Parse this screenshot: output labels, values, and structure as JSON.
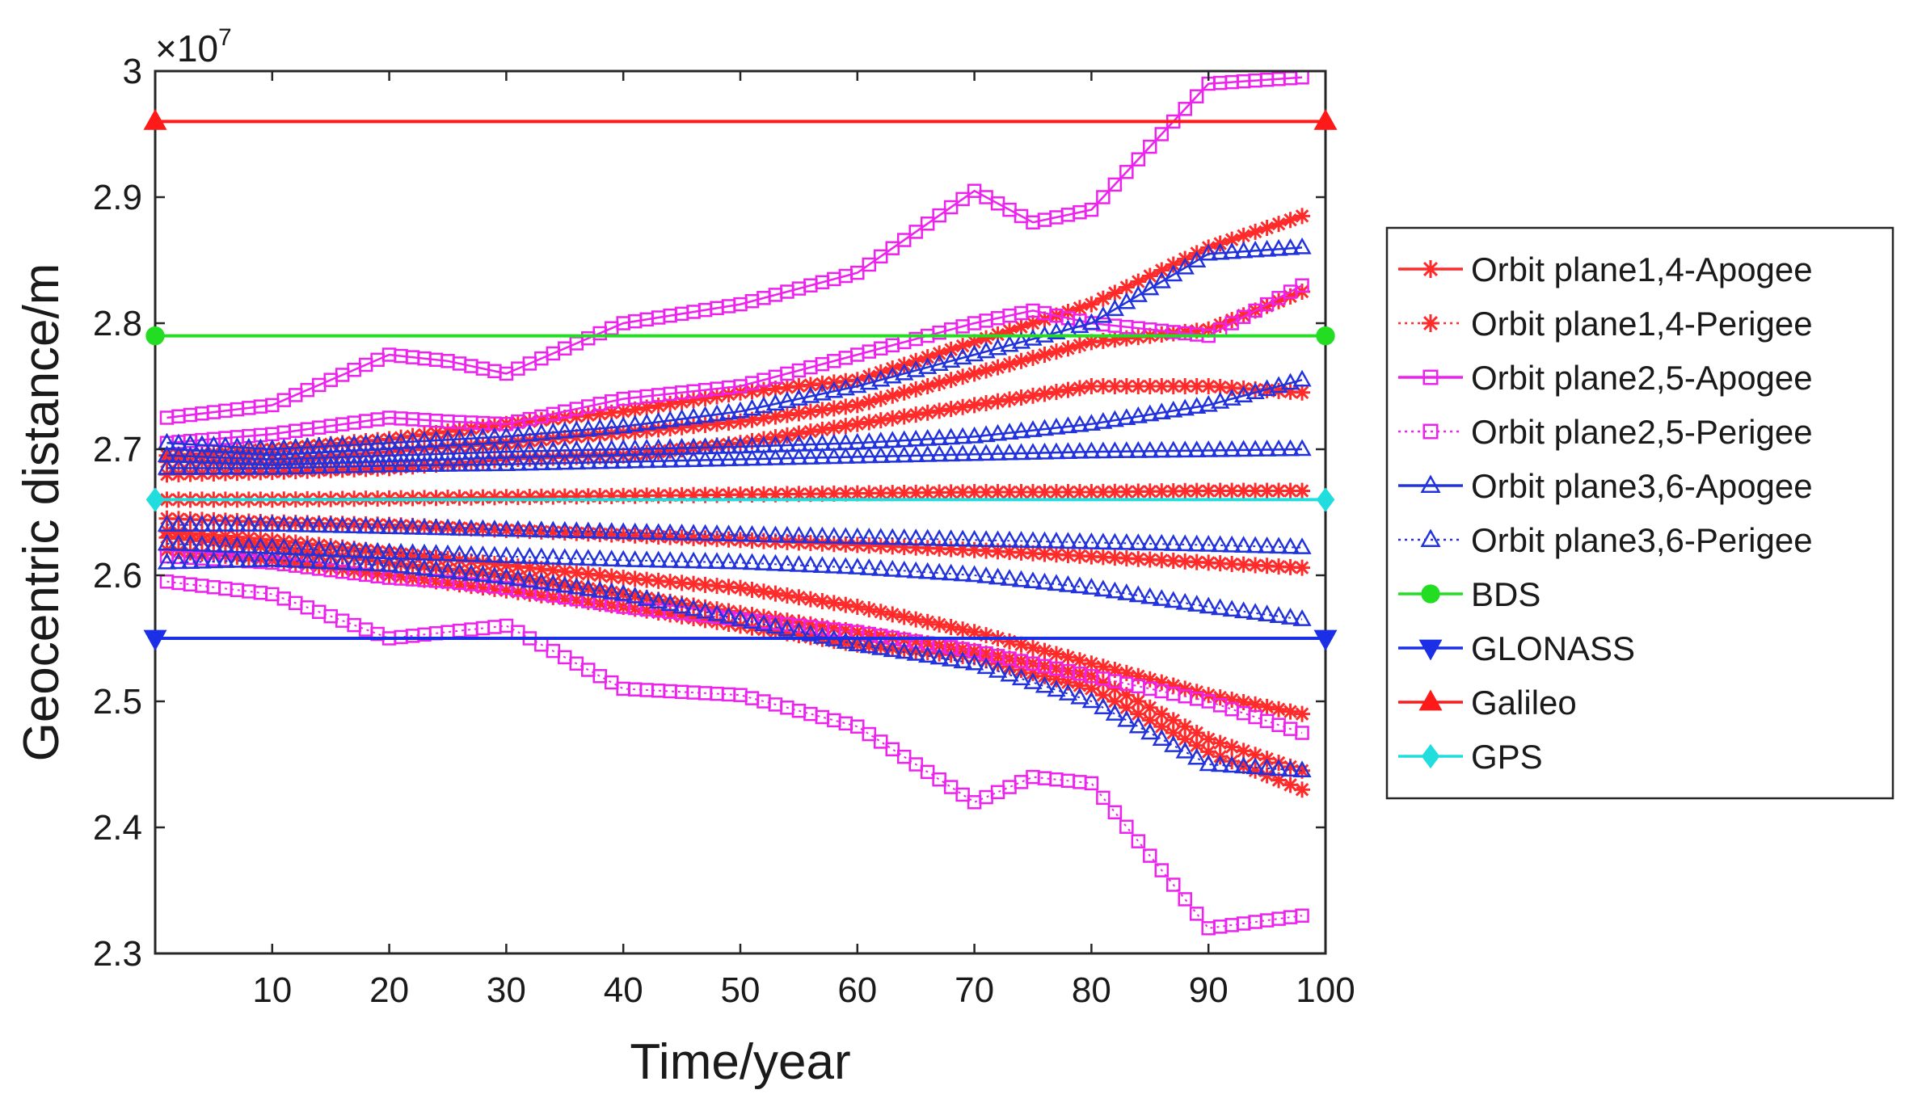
{
  "chart_data": {
    "type": "line",
    "title": "",
    "xlabel": "Time/year",
    "ylabel": "Geocentric distance/m",
    "y_exponent_label": "×10",
    "y_exponent": "7",
    "xlim": [
      0,
      100
    ],
    "ylim": [
      2.3,
      3.0
    ],
    "xticks": [
      "10",
      "20",
      "30",
      "40",
      "50",
      "60",
      "70",
      "80",
      "90",
      "100"
    ],
    "yticks": [
      "2.3",
      "2.4",
      "2.5",
      "2.6",
      "2.7",
      "2.8",
      "2.9",
      "3"
    ],
    "legend_position": "right",
    "colors": {
      "plane14": "#ff2a2a",
      "plane25": "#ee22ee",
      "plane36": "#2233dd",
      "bds": "#22dd22",
      "glonass": "#1a2fe6",
      "galileo": "#ff1a1a",
      "gps": "#22dddd"
    },
    "series": [
      {
        "name": "Orbit plane1,4-Apogee",
        "group": "plane14",
        "marker": "star",
        "dash": "solid",
        "x": [
          1,
          10,
          20,
          30,
          40,
          50,
          60,
          70,
          80,
          90,
          98
        ],
        "lines": [
          [
            2.695,
            2.7,
            2.708,
            2.72,
            2.73,
            2.745,
            2.755,
            2.785,
            2.815,
            2.86,
            2.885
          ],
          [
            2.69,
            2.692,
            2.698,
            2.705,
            2.713,
            2.722,
            2.735,
            2.76,
            2.785,
            2.795,
            2.825
          ],
          [
            2.68,
            2.682,
            2.685,
            2.692,
            2.695,
            2.705,
            2.72,
            2.735,
            2.75,
            2.75,
            2.745
          ],
          [
            2.66,
            2.66,
            2.661,
            2.662,
            2.663,
            2.664,
            2.665,
            2.666,
            2.666,
            2.667,
            2.667
          ]
        ]
      },
      {
        "name": "Orbit plane1,4-Perigee",
        "group": "plane14",
        "marker": "star",
        "dash": "dotted",
        "x": [
          1,
          10,
          20,
          30,
          40,
          50,
          60,
          70,
          80,
          90,
          98
        ],
        "lines": [
          [
            2.635,
            2.628,
            2.618,
            2.608,
            2.598,
            2.59,
            2.575,
            2.555,
            2.53,
            2.505,
            2.49
          ],
          [
            2.63,
            2.622,
            2.61,
            2.6,
            2.585,
            2.57,
            2.555,
            2.54,
            2.52,
            2.47,
            2.445
          ],
          [
            2.62,
            2.612,
            2.6,
            2.588,
            2.575,
            2.56,
            2.545,
            2.535,
            2.51,
            2.46,
            2.43
          ],
          [
            2.645,
            2.642,
            2.64,
            2.636,
            2.632,
            2.628,
            2.624,
            2.62,
            2.615,
            2.61,
            2.606
          ]
        ]
      },
      {
        "name": "Orbit plane2,5-Apogee",
        "group": "plane25",
        "marker": "square",
        "dash": "solid",
        "x": [
          1,
          10,
          20,
          25,
          30,
          40,
          50,
          60,
          70,
          75,
          80,
          90,
          98
        ],
        "lines": [
          [
            2.725,
            2.735,
            2.775,
            2.77,
            2.76,
            2.8,
            2.815,
            2.84,
            2.905,
            2.88,
            2.89,
            2.99,
            2.995
          ],
          [
            2.705,
            2.712,
            2.725,
            2.722,
            2.72,
            2.74,
            2.75,
            2.775,
            2.8,
            2.81,
            2.8,
            2.79,
            2.83
          ]
        ]
      },
      {
        "name": "Orbit plane2,5-Perigee",
        "group": "plane25",
        "marker": "square",
        "dash": "dotted",
        "x": [
          1,
          10,
          20,
          25,
          30,
          40,
          50,
          60,
          70,
          75,
          80,
          90,
          98
        ],
        "lines": [
          [
            2.595,
            2.585,
            2.55,
            2.555,
            2.56,
            2.51,
            2.505,
            2.48,
            2.42,
            2.44,
            2.435,
            2.32,
            2.33
          ],
          [
            2.615,
            2.61,
            2.598,
            2.595,
            2.59,
            2.575,
            2.565,
            2.555,
            2.54,
            2.53,
            2.52,
            2.5,
            2.475
          ]
        ]
      },
      {
        "name": "Orbit plane3,6-Apogee",
        "group": "plane36",
        "marker": "triangle",
        "dash": "solid",
        "x": [
          1,
          10,
          20,
          30,
          40,
          50,
          60,
          70,
          80,
          90,
          98
        ],
        "lines": [
          [
            2.705,
            2.7,
            2.705,
            2.71,
            2.718,
            2.73,
            2.75,
            2.775,
            2.8,
            2.855,
            2.86
          ],
          [
            2.695,
            2.692,
            2.695,
            2.698,
            2.7,
            2.702,
            2.705,
            2.71,
            2.72,
            2.735,
            2.755
          ],
          [
            2.685,
            2.685,
            2.687,
            2.688,
            2.69,
            2.692,
            2.694,
            2.696,
            2.698,
            2.699,
            2.7
          ]
        ]
      },
      {
        "name": "Orbit plane3,6-Perigee",
        "group": "plane36",
        "marker": "triangle",
        "dash": "dotted",
        "x": [
          1,
          10,
          20,
          30,
          40,
          50,
          60,
          70,
          80,
          90,
          98
        ],
        "lines": [
          [
            2.61,
            2.612,
            2.608,
            2.598,
            2.585,
            2.565,
            2.545,
            2.53,
            2.5,
            2.45,
            2.445
          ],
          [
            2.625,
            2.622,
            2.618,
            2.615,
            2.612,
            2.61,
            2.606,
            2.6,
            2.59,
            2.575,
            2.565
          ],
          [
            2.64,
            2.64,
            2.638,
            2.636,
            2.634,
            2.632,
            2.63,
            2.628,
            2.626,
            2.624,
            2.622
          ]
        ]
      },
      {
        "name": "BDS",
        "group": "bds",
        "marker": "circle",
        "dash": "solid",
        "x": [
          0,
          100
        ],
        "lines": [
          [
            2.79,
            2.79
          ]
        ]
      },
      {
        "name": "GLONASS",
        "group": "glonass",
        "marker": "triangle-down",
        "dash": "solid",
        "x": [
          0,
          100
        ],
        "lines": [
          [
            2.55,
            2.55
          ]
        ]
      },
      {
        "name": "Galileo",
        "group": "galileo",
        "marker": "triangle",
        "dash": "solid",
        "x": [
          0,
          100
        ],
        "lines": [
          [
            2.96,
            2.96
          ]
        ]
      },
      {
        "name": "GPS",
        "group": "gps",
        "marker": "diamond",
        "dash": "solid",
        "x": [
          0,
          100
        ],
        "lines": [
          [
            2.66,
            2.66
          ]
        ]
      }
    ]
  }
}
